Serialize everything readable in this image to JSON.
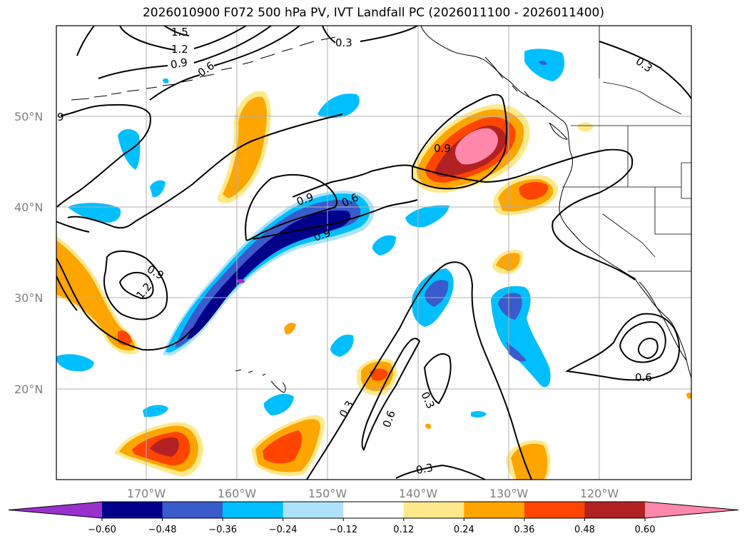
{
  "title": "2026010900 F072 500 hPa PV, IVT Landfall PC (2026011100 - 2026011400)",
  "lat_labels": [
    "50°N",
    "40°N",
    "30°N",
    "20°N"
  ],
  "lon_labels": [
    "170°W",
    "160°W",
    "150°W",
    "140°W",
    "130°W",
    "120°W"
  ],
  "colorbar": {
    "colors": [
      "#9932cc",
      "#00008b",
      "#3a5bcc",
      "#00bfff",
      "#ade3fa",
      "#ffffff",
      "#ffe98a",
      "#ffa500",
      "#ff4500",
      "#b22222",
      "#ff88aa"
    ],
    "tick_labels": [
      "−0.60",
      "−0.48",
      "−0.36",
      "−0.24",
      "−0.12",
      "0.12",
      "0.24",
      "0.36",
      "0.48",
      "0.60"
    ]
  },
  "contour_labels": {
    "l1": "1.5",
    "l2": "1.2",
    "l3": "0.9",
    "l4": "0.6",
    "l5": "0.3",
    "l6": "0.3",
    "l7": "9",
    "l8": "0.9",
    "l9": "0.9",
    "l10": "0.6",
    "l11": "0.9",
    "l12": "0.9",
    "l13": "1.2",
    "l14": "0.3",
    "l15": "0.6",
    "l16": "0.3",
    "l17": "0.3",
    "l18": "0.6"
  }
}
